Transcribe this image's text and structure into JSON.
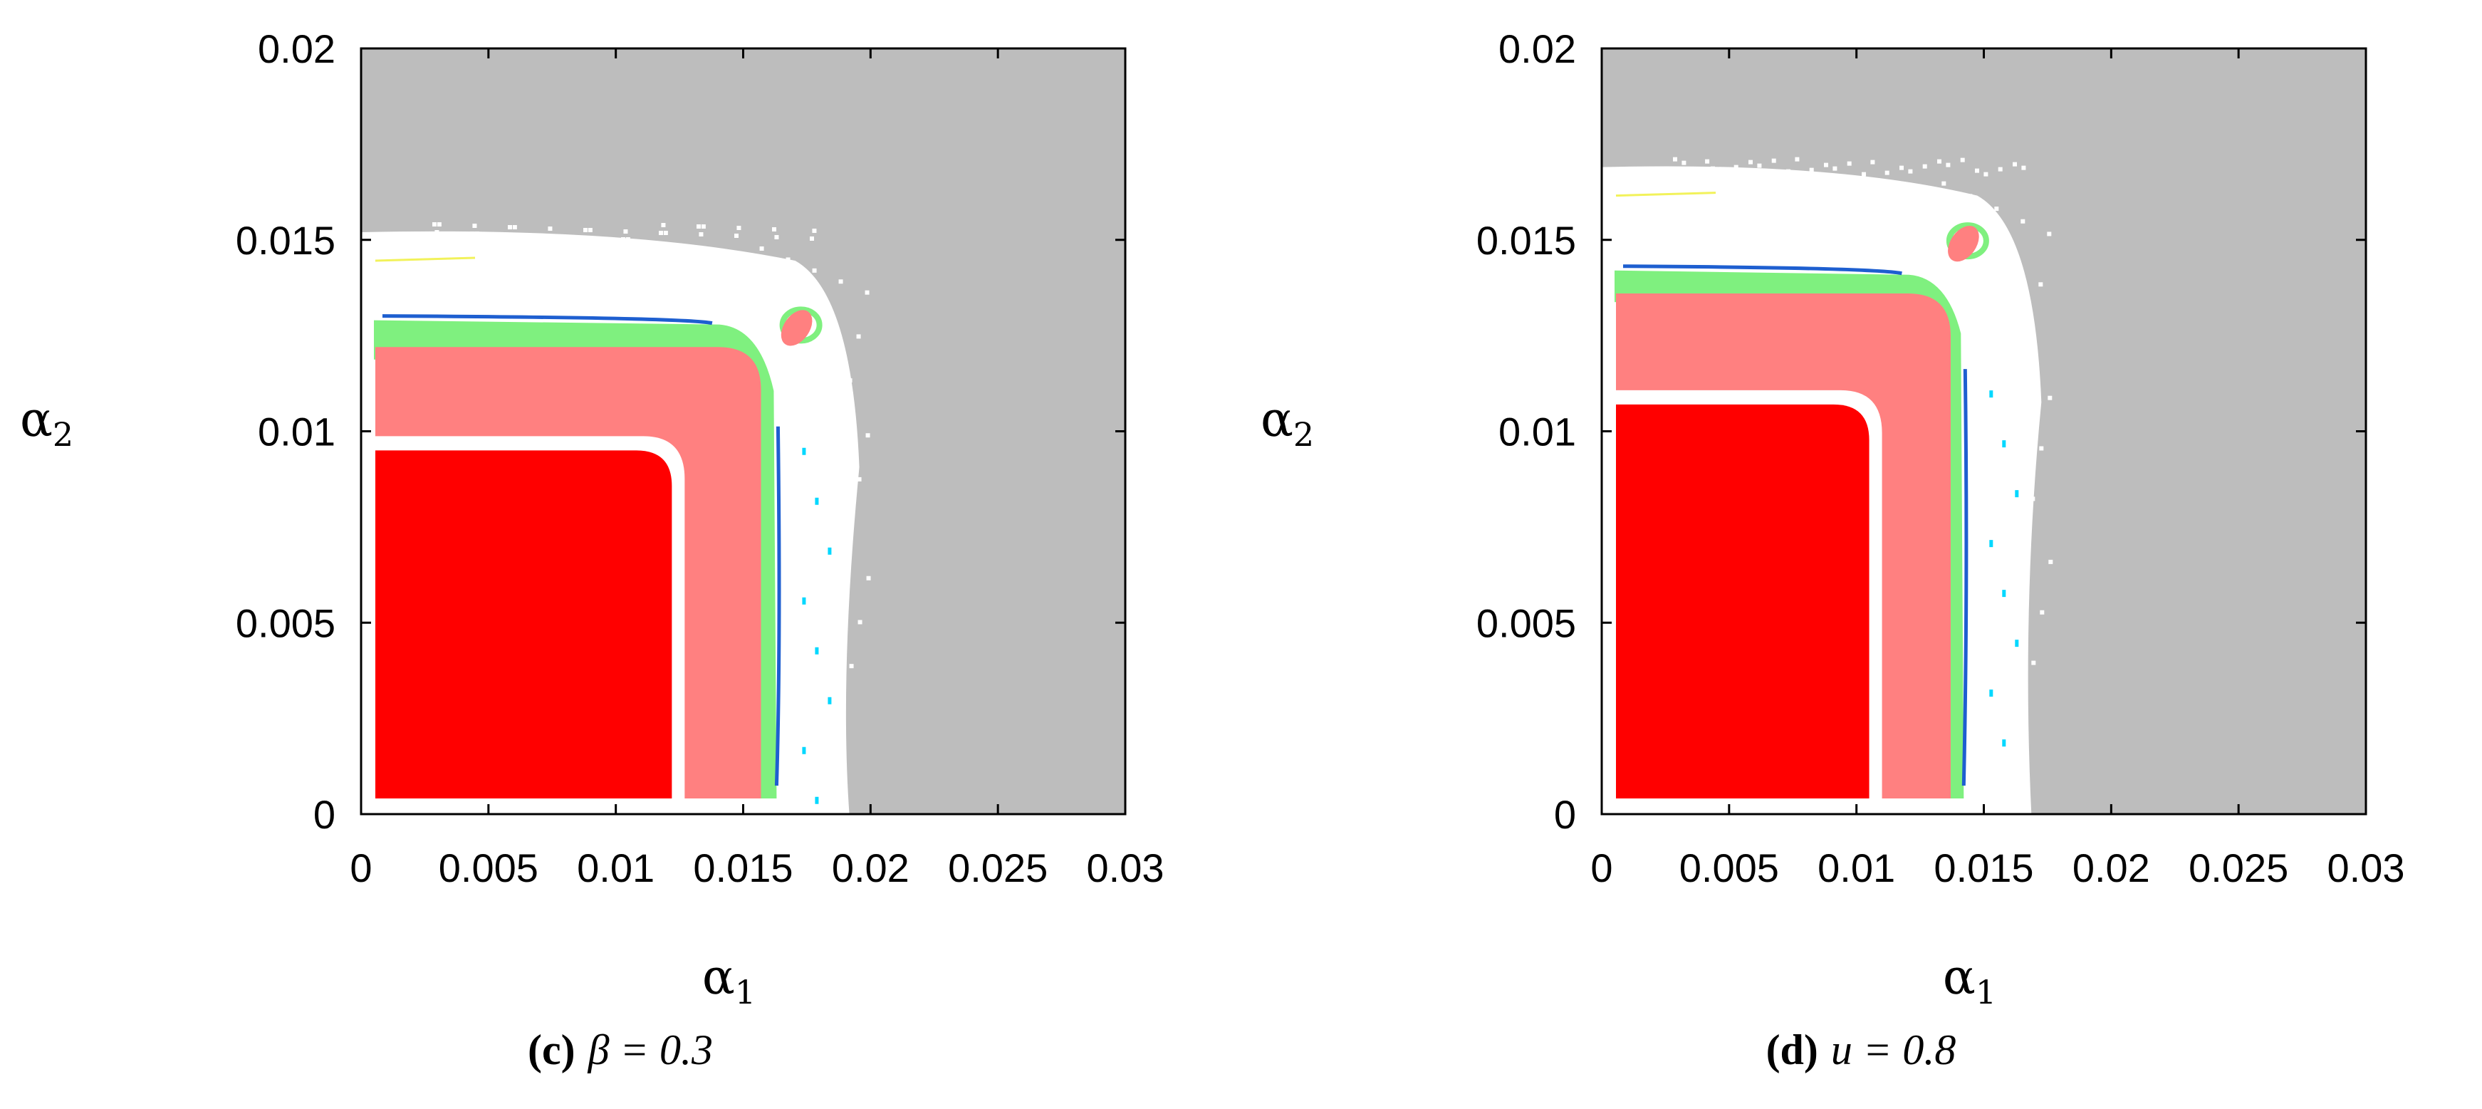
{
  "colors": {
    "background_region": "#bdbdbd",
    "boundary_region": "#ffffff",
    "core_region": "#ff0000",
    "inner_ring": "#ff8080",
    "green_band": "#7ff07f",
    "blue_line": "#1e5fd0",
    "cyan_speckle": "#00d8ff",
    "yellow_speckle": "#f2f25a"
  },
  "chart_data": [
    {
      "type": "heatmap",
      "caption_letter": "(c)",
      "caption_expr": "β = 0.3",
      "xlabel": "α",
      "xlabel_sub": "1",
      "ylabel": "α",
      "ylabel_sub": "2",
      "xlim": [
        0,
        0.03
      ],
      "ylim": [
        0,
        0.02
      ],
      "xticks": [
        "0",
        "0.005",
        "0.01",
        "0.015",
        "0.02",
        "0.025",
        "0.03"
      ],
      "yticks": [
        "0",
        "0.005",
        "0.01",
        "0.015",
        "0.02"
      ],
      "regions": {
        "core_red": {
          "x1": 0.0122,
          "y1": 0.0095
        },
        "inner_ring": {
          "x1": 0.0157,
          "y1": 0.0122
        },
        "green_band": {
          "x0": 0.0149,
          "x1": 0.0162,
          "y0": 0.0118,
          "y1": 0.0129
        },
        "white_boundary": {
          "x1": 0.019,
          "y1": 0.0152
        },
        "red_blob": {
          "x": 0.0171,
          "y": 0.0127
        }
      }
    },
    {
      "type": "heatmap",
      "caption_letter": "(d)",
      "caption_expr": "u = 0.8",
      "xlabel": "α",
      "xlabel_sub": "1",
      "ylabel": "α",
      "ylabel_sub": "2",
      "xlim": [
        0,
        0.03
      ],
      "ylim": [
        0,
        0.02
      ],
      "xticks": [
        "0",
        "0.005",
        "0.01",
        "0.015",
        "0.02",
        "0.025",
        "0.03"
      ],
      "yticks": [
        "0",
        "0.005",
        "0.01",
        "0.015",
        "0.02"
      ],
      "regions": {
        "core_red": {
          "x1": 0.0105,
          "y1": 0.0107
        },
        "inner_ring": {
          "x1": 0.0137,
          "y1": 0.0136
        },
        "green_band": {
          "x0": 0.0129,
          "x1": 0.0141,
          "y0": 0.0133,
          "y1": 0.0142
        },
        "white_boundary": {
          "x1": 0.0167,
          "y1": 0.0169
        },
        "red_blob": {
          "x": 0.0142,
          "y": 0.0149
        }
      }
    }
  ]
}
